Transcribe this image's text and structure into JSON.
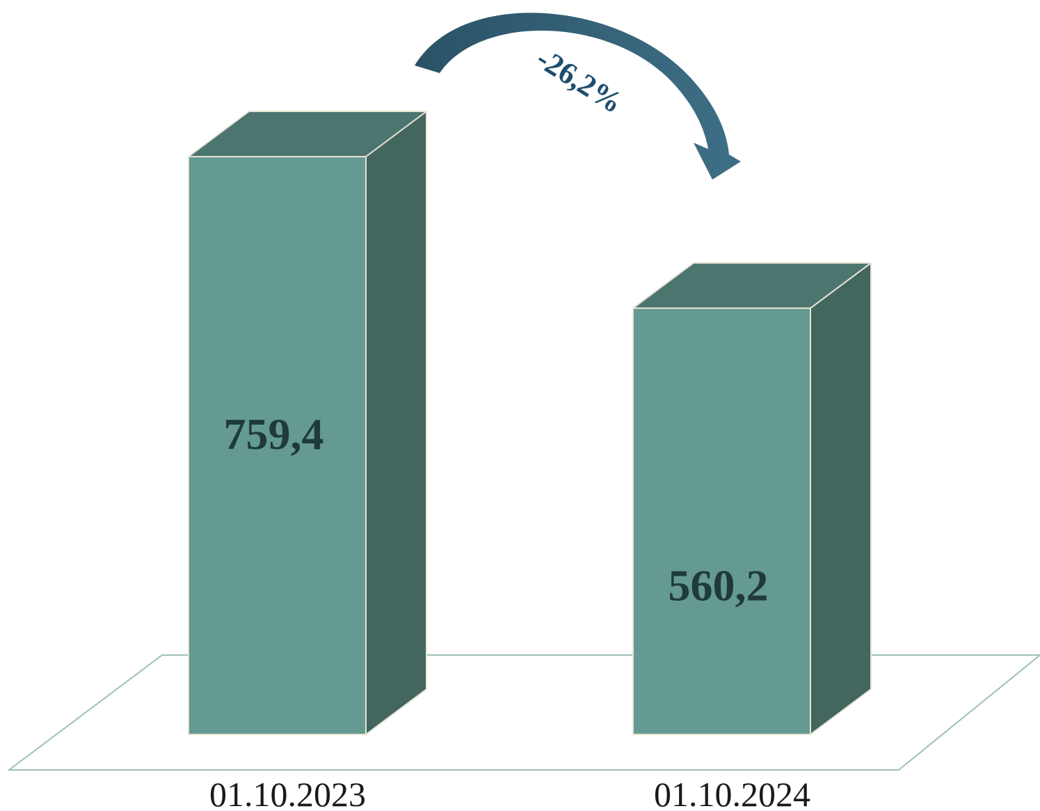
{
  "chart_data": {
    "type": "bar",
    "categories": [
      "01.10.2023",
      "01.10.2024"
    ],
    "values": [
      759.4,
      560.2
    ],
    "value_labels": [
      "759,4",
      "560,2"
    ],
    "change_label": "-26,2%",
    "title": "",
    "xlabel": "",
    "ylabel": "",
    "style": "3d",
    "grid": false,
    "colors": {
      "front": "#659a92",
      "top": "#4d7570",
      "side": "#43665f",
      "edge": "#e8e4d4",
      "floor": "#9dbfb9",
      "arrow_start": "#2a5266",
      "arrow_end": "#3e6f86"
    }
  }
}
